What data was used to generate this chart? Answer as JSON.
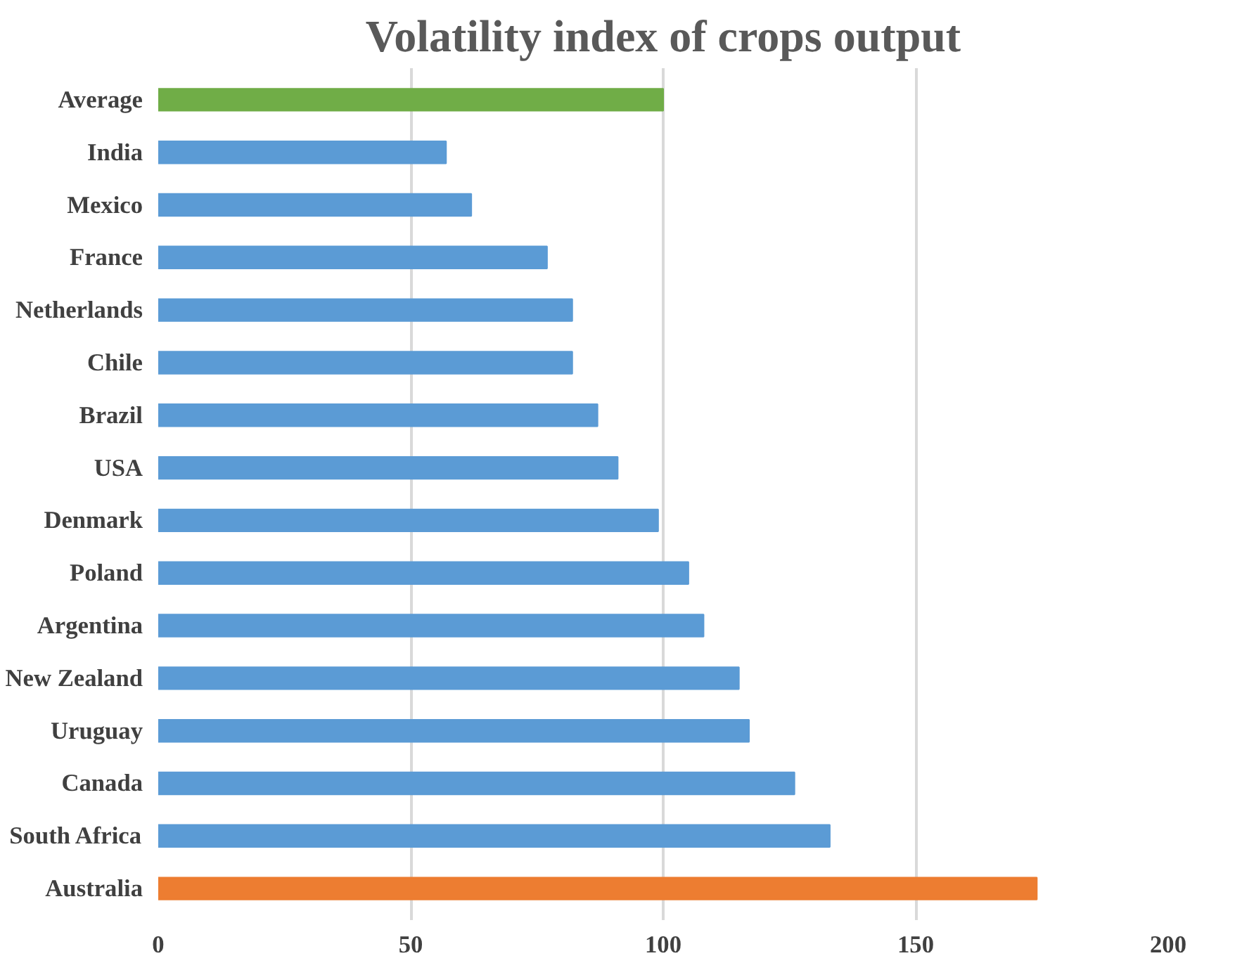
{
  "chart_data": {
    "type": "bar",
    "orientation": "horizontal",
    "title": "Volatility index of crops output",
    "categories": [
      "Average",
      "India",
      "Mexico",
      "France",
      "Netherlands",
      "Chile",
      "Brazil",
      "USA",
      "Denmark",
      "Poland",
      "Argentina",
      "New Zealand",
      "Uruguay",
      "Canada",
      "South Africa",
      "Australia"
    ],
    "values": [
      100,
      57,
      62,
      77,
      82,
      82,
      87,
      91,
      99,
      105,
      108,
      115,
      117,
      126,
      133,
      174
    ],
    "colors": [
      "#70ad47",
      "#5b9bd5",
      "#5b9bd5",
      "#5b9bd5",
      "#5b9bd5",
      "#5b9bd5",
      "#5b9bd5",
      "#5b9bd5",
      "#5b9bd5",
      "#5b9bd5",
      "#5b9bd5",
      "#5b9bd5",
      "#5b9bd5",
      "#5b9bd5",
      "#5b9bd5",
      "#ed7d31"
    ],
    "xlim": [
      0,
      200
    ],
    "xticks": [
      0,
      50,
      100,
      150,
      200
    ],
    "grid": "x"
  }
}
